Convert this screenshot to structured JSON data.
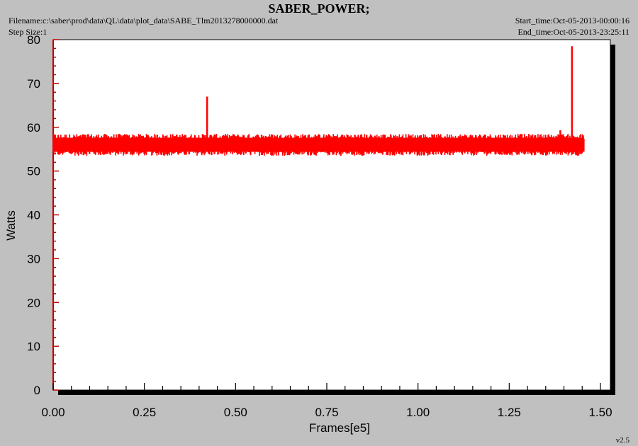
{
  "header": {
    "title": "SABER_POWER;",
    "filename": "Filename:c:\\saber\\prod\\data\\QL\\data\\plot_data\\SABE_Tlm2013278000000.dat",
    "step_size": "Step Size:1",
    "start_time": "Start_time:Oct-05-2013-00:00:16",
    "end_time": "End_time:Oct-05-2013-23:25:11"
  },
  "version": "v2.5",
  "colors": {
    "background": "#c0c0c0",
    "plot_bg": "#ffffff",
    "series": "#ff0000",
    "axis_ticks": "#c00000"
  },
  "chart_data": {
    "type": "line",
    "title": "SABER_POWER;",
    "xlabel": "Frames[e5]",
    "ylabel": "Watts",
    "xlim": [
      0.0,
      1.5
    ],
    "ylim": [
      0,
      80
    ],
    "x_ticks": [
      "0.00",
      "0.25",
      "0.50",
      "0.75",
      "1.00",
      "1.25",
      "1.50"
    ],
    "y_ticks": [
      "0",
      "10",
      "20",
      "30",
      "40",
      "50",
      "60",
      "70",
      "80"
    ],
    "grid": false,
    "series": [
      {
        "color": "#ff0000",
        "x_range": [
          0.0,
          1.455
        ],
        "baseline": 56,
        "noise_min": 53.5,
        "noise_max": 58.5,
        "spikes": [
          {
            "x": 0.422,
            "y": 67
          },
          {
            "x": 1.422,
            "y": 78.5
          },
          {
            "x": 1.39,
            "y": 59.3
          }
        ]
      }
    ]
  }
}
